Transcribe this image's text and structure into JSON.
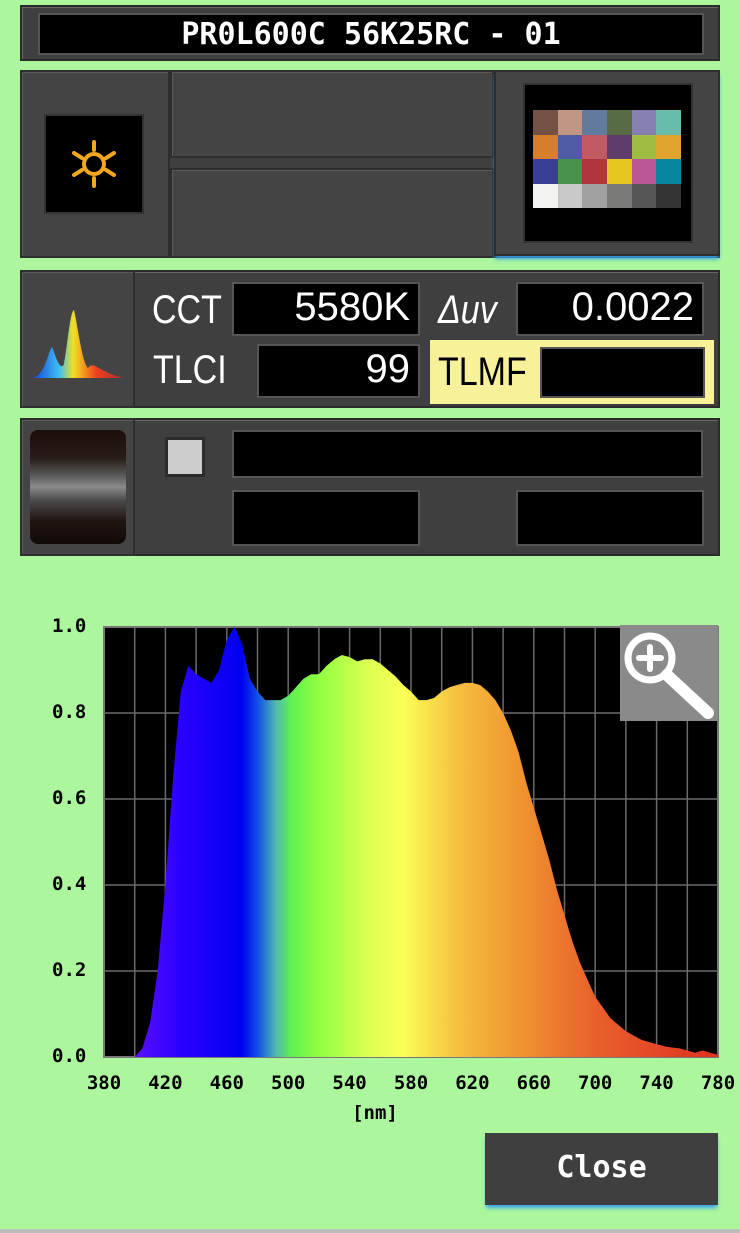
{
  "header": {
    "title": "PR0L600C 56K25RC - 01"
  },
  "icons": {
    "light_source": "sun-icon",
    "color_chart": "color-checker-icon",
    "spectrum": "spectrum-icon",
    "roller": "roller-icon",
    "zoom": "zoom-in-icon"
  },
  "color_checker": [
    "#735244",
    "#c29682",
    "#627a9d",
    "#576c43",
    "#8580b1",
    "#67bdaa",
    "#d67e2c",
    "#505ba6",
    "#c15a63",
    "#5e3c6c",
    "#9dbc40",
    "#e0a32e",
    "#383d96",
    "#469449",
    "#af363c",
    "#e7c71f",
    "#bb5695",
    "#0885a1",
    "#f3f3f2",
    "#c8c8c8",
    "#a0a0a0",
    "#7a7a79",
    "#555555",
    "#343434"
  ],
  "measurements": {
    "cct": {
      "label": "CCT",
      "value": "5580K"
    },
    "duv": {
      "label": "Δuv",
      "value": "0.0022"
    },
    "tlci": {
      "label": "TLCI",
      "value": "99"
    },
    "tlmf": {
      "label": "TLMF",
      "value": ""
    }
  },
  "accent_colors": {
    "background": "#acf79e",
    "tlmf_highlight": "#f7f19a",
    "panel": "#3f3f3f"
  },
  "chart_data": {
    "type": "area",
    "xlabel": "[nm]",
    "ylabel": "",
    "xlim": [
      380,
      780
    ],
    "ylim": [
      0,
      1.0
    ],
    "x_ticks": [
      "380",
      "420",
      "460",
      "500",
      "540",
      "580",
      "620",
      "660",
      "700",
      "740",
      "780"
    ],
    "y_ticks": [
      "1.0",
      "0.8",
      "0.6",
      "0.4",
      "0.2",
      "0.0"
    ],
    "grid": true,
    "fill": "visible-spectrum-gradient",
    "x": [
      380,
      390,
      400,
      405,
      410,
      415,
      420,
      425,
      430,
      435,
      440,
      445,
      450,
      455,
      460,
      465,
      470,
      475,
      480,
      485,
      490,
      495,
      500,
      505,
      510,
      515,
      520,
      525,
      530,
      535,
      540,
      545,
      550,
      555,
      560,
      565,
      570,
      575,
      580,
      585,
      590,
      595,
      600,
      605,
      610,
      615,
      620,
      625,
      630,
      635,
      640,
      645,
      650,
      655,
      660,
      665,
      670,
      675,
      680,
      685,
      690,
      695,
      700,
      705,
      710,
      715,
      720,
      725,
      730,
      735,
      740,
      745,
      750,
      755,
      760,
      765,
      770,
      775,
      780
    ],
    "y": [
      0,
      0,
      0.0,
      0.02,
      0.08,
      0.2,
      0.4,
      0.65,
      0.85,
      0.91,
      0.89,
      0.88,
      0.87,
      0.9,
      0.97,
      1.0,
      0.96,
      0.88,
      0.85,
      0.83,
      0.83,
      0.83,
      0.84,
      0.86,
      0.88,
      0.89,
      0.89,
      0.91,
      0.925,
      0.935,
      0.93,
      0.92,
      0.925,
      0.925,
      0.915,
      0.9,
      0.885,
      0.865,
      0.85,
      0.83,
      0.83,
      0.835,
      0.85,
      0.86,
      0.865,
      0.87,
      0.87,
      0.865,
      0.85,
      0.83,
      0.8,
      0.76,
      0.71,
      0.64,
      0.58,
      0.52,
      0.46,
      0.39,
      0.33,
      0.27,
      0.22,
      0.18,
      0.14,
      0.115,
      0.09,
      0.075,
      0.06,
      0.05,
      0.04,
      0.035,
      0.03,
      0.025,
      0.022,
      0.02,
      0.015,
      0.01,
      0.015,
      0.01,
      0.005
    ]
  },
  "footer": {
    "close_label": "Close"
  }
}
